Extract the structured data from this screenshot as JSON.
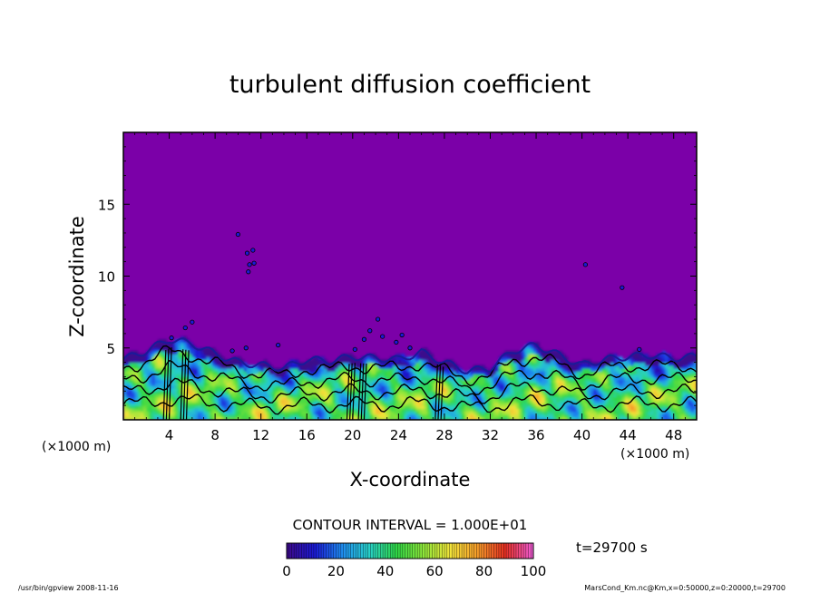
{
  "chart_data": {
    "type": "heatmap",
    "title": "turbulent diffusion coefficient",
    "xlabel": "X-coordinate",
    "ylabel": "Z-coordinate",
    "x_unit": "(×1000 m)",
    "y_unit": "(×1000 m)",
    "xlim": [
      0,
      50
    ],
    "ylim": [
      0,
      20
    ],
    "x_ticks": [
      4,
      8,
      12,
      16,
      20,
      24,
      28,
      32,
      36,
      40,
      44,
      48
    ],
    "y_ticks": [
      5,
      10,
      15
    ],
    "contour_interval_label": "CONTOUR INTERVAL = 1.000E+01",
    "time_label": "t=29700 s",
    "colorbar": {
      "min": 0,
      "max": 100,
      "ticks": [
        0,
        20,
        40,
        60,
        80,
        100
      ],
      "colormap": [
        "#3b0a8c",
        "#1a1ad6",
        "#1f8cf0",
        "#28d0c8",
        "#2fd646",
        "#8ee63a",
        "#f2e33a",
        "#f59a2a",
        "#e63022",
        "#f05ad0"
      ]
    },
    "background_value": 0,
    "boundary_layer_top": [
      [
        0,
        4.2
      ],
      [
        2,
        4.8
      ],
      [
        4,
        5.6
      ],
      [
        6,
        5.3
      ],
      [
        8,
        4.6
      ],
      [
        10,
        4.0
      ],
      [
        12,
        3.8
      ],
      [
        14,
        3.6
      ],
      [
        16,
        4.2
      ],
      [
        18,
        4.1
      ],
      [
        20,
        4.4
      ],
      [
        22,
        4.3
      ],
      [
        24,
        4.2
      ],
      [
        26,
        4.7
      ],
      [
        28,
        4.0
      ],
      [
        30,
        3.4
      ],
      [
        32,
        3.6
      ],
      [
        34,
        4.8
      ],
      [
        36,
        5.2
      ],
      [
        38,
        4.5
      ],
      [
        40,
        3.8
      ],
      [
        42,
        4.2
      ],
      [
        44,
        4.4
      ],
      [
        46,
        4.5
      ],
      [
        48,
        4.3
      ],
      [
        50,
        4.4
      ]
    ]
  },
  "footer": {
    "left": "/usr/bin/gpview   2008-11-16",
    "right": "MarsCond_Km.nc@Km,x=0:50000,z=0:20000,t=29700"
  },
  "colors": {
    "background_fill": "#7b00a8"
  }
}
